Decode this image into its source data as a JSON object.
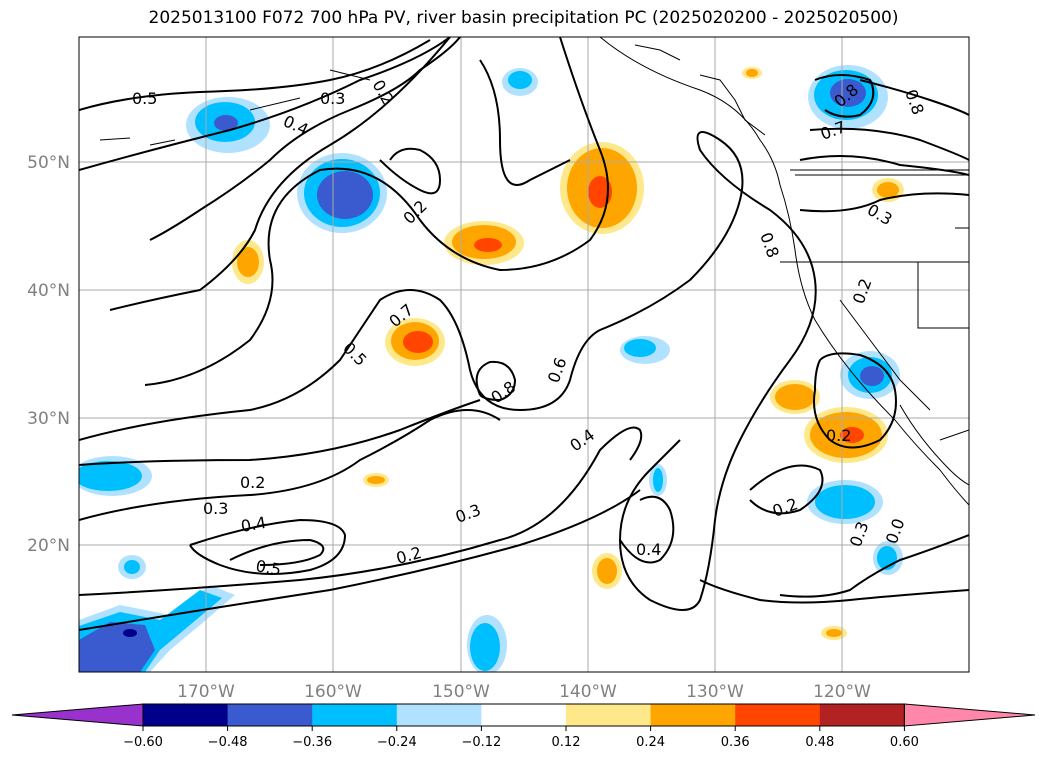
{
  "title": "2025013100 F072 700 hPa PV, river basin precipitation PC (2025020200 - 2025020500)",
  "lat_labels": [
    "50°N",
    "40°N",
    "30°N",
    "20°N"
  ],
  "lon_labels": [
    "170°W",
    "160°W",
    "150°W",
    "140°W",
    "130°W",
    "120°W"
  ],
  "colorbar": {
    "ticks": [
      "−0.60",
      "−0.48",
      "−0.36",
      "−0.24",
      "−0.12",
      "0.12",
      "0.24",
      "0.36",
      "0.48",
      "0.60"
    ],
    "colors": [
      "#9932cc",
      "#00008b",
      "#3a5bd0",
      "#00bfff",
      "#b0e2ff",
      "#ffffff",
      "#ffe88a",
      "#ffa500",
      "#ff4500",
      "#b22222",
      "#ff88aa"
    ]
  },
  "contour_labels": [
    "0.5",
    "0.3",
    "0.4",
    "0.2",
    "0.2",
    "0.8",
    "0.7",
    "0.8",
    "0.3",
    "0.8",
    "0.2",
    "0.7",
    "0.5",
    "0.8",
    "0.6",
    "0.4",
    "0.2",
    "0.3",
    "0.4",
    "0.5",
    "0.2",
    "0.3",
    "0.2",
    "0.4",
    "0.2",
    "0.3",
    "0.0"
  ]
}
